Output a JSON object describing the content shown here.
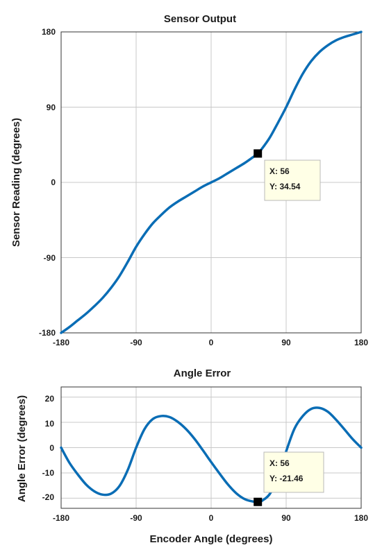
{
  "chart_data": [
    {
      "type": "line",
      "title": "Sensor Output",
      "xlabel": "",
      "ylabel": "Sensor Reading (degrees)",
      "xlim": [
        -180,
        180
      ],
      "ylim": [
        -180,
        180
      ],
      "xticks": [
        "-180",
        "-90",
        "0",
        "90",
        "180"
      ],
      "yticks": [
        "180",
        "90",
        "0",
        "-90",
        "-180"
      ],
      "grid": true,
      "line_color": "#0a6db5",
      "series": [
        {
          "x": [
            -180,
            -170,
            -160,
            -150,
            -140,
            -130,
            -120,
            -110,
            -100,
            -90,
            -80,
            -70,
            -60,
            -50,
            -40,
            -30,
            -20,
            -10,
            0,
            10,
            20,
            30,
            40,
            50,
            56,
            60,
            70,
            80,
            90,
            100,
            110,
            120,
            130,
            140,
            150,
            160,
            170,
            180
          ],
          "y": [
            -180,
            -173,
            -165,
            -157,
            -148,
            -138,
            -126,
            -112,
            -95,
            -77,
            -62,
            -49,
            -39,
            -30,
            -23,
            -17,
            -11,
            -5,
            0,
            5,
            11,
            17,
            23,
            30,
            34.54,
            39,
            53,
            71,
            90,
            111,
            130,
            145,
            156,
            164,
            170,
            174,
            177,
            180
          ]
        }
      ],
      "datatip": {
        "x_label": "X: 56",
        "y_label": "Y: 34.54",
        "x": 56,
        "y": 34.54
      }
    },
    {
      "type": "line",
      "title": "Angle Error",
      "xlabel": "Encoder Angle (degrees)",
      "ylabel": "Angle Error (degrees)",
      "xlim": [
        -180,
        180
      ],
      "ylim": [
        -24,
        24
      ],
      "xticks": [
        "-180",
        "-90",
        "0",
        "90",
        "180"
      ],
      "yticks": [
        "20",
        "10",
        "0",
        "-10",
        "-20"
      ],
      "grid": true,
      "line_color": "#0a6db5",
      "series": [
        {
          "x": [
            -180,
            -170,
            -160,
            -150,
            -140,
            -130,
            -120,
            -110,
            -100,
            -90,
            -80,
            -70,
            -60,
            -50,
            -40,
            -30,
            -20,
            -10,
            0,
            10,
            20,
            30,
            40,
            50,
            56,
            60,
            70,
            80,
            90,
            100,
            110,
            120,
            130,
            140,
            150,
            160,
            170,
            180
          ],
          "y": [
            0,
            -6,
            -10.6,
            -14.6,
            -17.3,
            -18.6,
            -18.2,
            -15.2,
            -8.8,
            0,
            7.3,
            11.3,
            12.5,
            12.1,
            10.2,
            7.3,
            3.5,
            -1,
            -5.7,
            -10.2,
            -14.5,
            -18,
            -20.3,
            -21.3,
            -21.46,
            -21.2,
            -18.5,
            -12,
            -1.5,
            7.5,
            12.5,
            15.3,
            15.7,
            14.2,
            11,
            7.2,
            3.3,
            0
          ]
        }
      ],
      "datatip": {
        "x_label": "X: 56",
        "y_label": "Y: -21.46",
        "x": 56,
        "y": -21.46
      }
    }
  ]
}
